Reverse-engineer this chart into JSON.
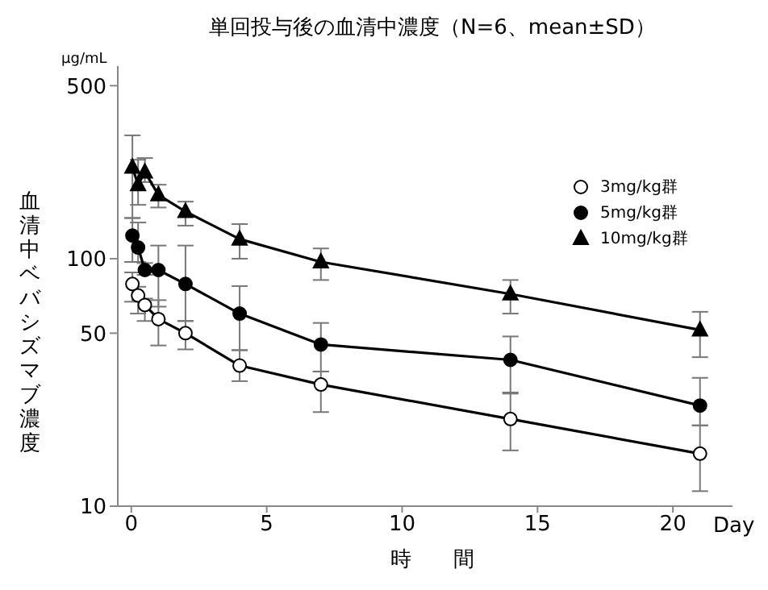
{
  "chart_data": {
    "type": "line",
    "title": "単回投与後の血清中濃度（N=6、mean±SD）",
    "xlabel": "時　　間",
    "ylabel": "血清中ベバシズマブ濃度",
    "annotations": [
      "μg/mL",
      "Day"
    ],
    "x": [
      0.04,
      0.25,
      0.5,
      1,
      2,
      4,
      7,
      14,
      21
    ],
    "series": [
      {
        "name": "3mg/kg群",
        "color": "#000000",
        "colors": [
          "#ffffff",
          "#ffffff",
          "#ffffff",
          "#ffffff",
          "#ffffff",
          "#ffffff",
          "#ffffff",
          "#ffffff",
          "#ffffff"
        ],
        "marker": "circle",
        "values": [
          79,
          71,
          65,
          57,
          50,
          37,
          31,
          22.5,
          16.3
        ],
        "errors": [
          [
            67,
            88
          ],
          [
            60,
            77
          ],
          [
            56,
            69
          ],
          [
            44.6,
            68
          ],
          [
            43,
            56
          ],
          [
            32,
            42.7
          ],
          [
            24,
            35
          ],
          [
            16.8,
            28.8
          ],
          [
            11.5,
            21.2
          ]
        ]
      },
      {
        "name": "5mg/kg群",
        "color": "#000000",
        "marker": "circle",
        "values": [
          124,
          111,
          90,
          90,
          79,
          60,
          45,
          39,
          25.5
        ],
        "errors": [
          [
            97,
            146
          ],
          [
            97,
            140
          ],
          [
            86,
            96
          ],
          [
            64,
            113
          ],
          [
            56,
            113
          ],
          [
            42.7,
            77.5
          ],
          [
            35,
            55
          ],
          [
            28.5,
            48.5
          ],
          [
            21.2,
            33
          ]
        ]
      },
      {
        "name": "10mg/kg群",
        "color": "#000000",
        "marker": "triangle",
        "values": [
          234,
          199,
          224,
          181,
          155,
          120,
          97,
          72,
          51.5
        ],
        "errors": [
          [
            146,
            315
          ],
          [
            165,
            251
          ],
          [
            204,
            255
          ],
          [
            161,
            199
          ],
          [
            136,
            170
          ],
          [
            100,
            138
          ],
          [
            82,
            110
          ],
          [
            60,
            82
          ],
          [
            40,
            61
          ]
        ]
      }
    ],
    "log": "y",
    "ylim": [
      10,
      600
    ],
    "yticks": [
      10,
      50,
      100,
      500
    ],
    "xlim": [
      -0.5,
      22.2
    ],
    "xticks": [
      0,
      5,
      10,
      15,
      20
    ],
    "grid": false,
    "legend": "top right",
    "line_style": "solid"
  }
}
